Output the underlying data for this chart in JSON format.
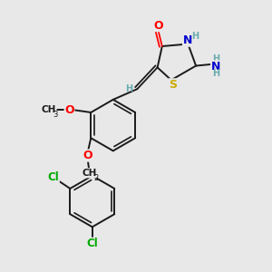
{
  "bg_color": "#e8e8e8",
  "bond_color": "#1a1a1a",
  "atom_colors": {
    "O": "#ff0000",
    "N": "#0000cd",
    "S": "#ccaa00",
    "Cl": "#00aa00",
    "C": "#1a1a1a",
    "H": "#6aabb0"
  },
  "figsize": [
    3.0,
    3.0
  ],
  "dpi": 100
}
